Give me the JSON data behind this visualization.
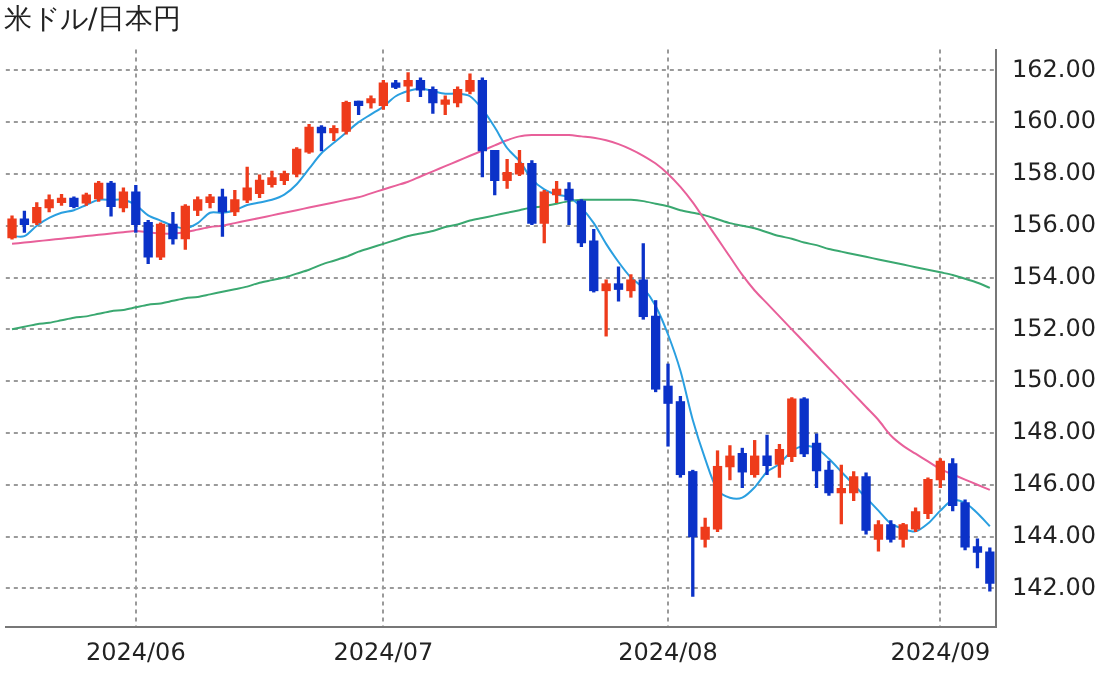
{
  "chart_data": {
    "type": "candlestick",
    "title": "米ドル/日本円",
    "categories": [
      null,
      null,
      null,
      null,
      null,
      null,
      null,
      null,
      null,
      null,
      "2024/06",
      null,
      null,
      null,
      null,
      null,
      null,
      null,
      null,
      null,
      null,
      null,
      null,
      null,
      null,
      null,
      null,
      null,
      null,
      null,
      "2024/07",
      null,
      null,
      null,
      null,
      null,
      null,
      null,
      null,
      null,
      null,
      null,
      null,
      null,
      null,
      null,
      null,
      null,
      null,
      null,
      null,
      null,
      null,
      "2024/08",
      null,
      null,
      null,
      null,
      null,
      null,
      null,
      null,
      null,
      null,
      null,
      null,
      null,
      null,
      null,
      null,
      null,
      null,
      null,
      null,
      null,
      "2024/09",
      null,
      null,
      null,
      null
    ],
    "ohlc": [
      [
        155.54,
        156.37,
        155.49,
        156.25
      ],
      [
        156.25,
        156.55,
        155.75,
        156.05
      ],
      [
        156.12,
        156.88,
        156.05,
        156.7
      ],
      [
        156.7,
        157.18,
        156.55,
        157.0
      ],
      [
        156.9,
        157.2,
        156.8,
        157.05
      ],
      [
        157.05,
        157.1,
        156.7,
        156.75
      ],
      [
        156.88,
        157.25,
        156.8,
        157.18
      ],
      [
        157.05,
        157.7,
        156.95,
        157.63
      ],
      [
        157.63,
        157.7,
        156.38,
        156.75
      ],
      [
        156.7,
        157.45,
        156.55,
        157.3
      ],
      [
        157.3,
        157.55,
        155.75,
        156.05
      ],
      [
        156.12,
        156.2,
        154.55,
        154.8
      ],
      [
        154.8,
        156.1,
        154.7,
        156.05
      ],
      [
        156.05,
        156.5,
        155.3,
        155.5
      ],
      [
        155.5,
        156.8,
        155.1,
        156.75
      ],
      [
        156.6,
        157.1,
        156.4,
        157.0
      ],
      [
        156.9,
        157.2,
        156.7,
        157.1
      ],
      [
        157.1,
        157.4,
        155.6,
        156.55
      ],
      [
        156.55,
        157.35,
        156.4,
        157.0
      ],
      [
        157.0,
        158.25,
        156.9,
        157.45
      ],
      [
        157.25,
        157.95,
        157.1,
        157.75
      ],
      [
        157.6,
        158.1,
        157.5,
        157.85
      ],
      [
        157.75,
        158.1,
        157.6,
        158.0
      ],
      [
        158.0,
        159.0,
        157.9,
        158.95
      ],
      [
        158.85,
        159.9,
        158.8,
        159.8
      ],
      [
        159.8,
        159.85,
        158.9,
        159.6
      ],
      [
        159.6,
        159.85,
        159.3,
        159.75
      ],
      [
        159.65,
        160.8,
        159.55,
        160.75
      ],
      [
        160.8,
        160.8,
        160.3,
        160.65
      ],
      [
        160.75,
        161.0,
        160.55,
        160.9
      ],
      [
        160.65,
        161.6,
        160.5,
        161.5
      ],
      [
        161.5,
        161.6,
        161.3,
        161.35
      ],
      [
        161.4,
        161.9,
        160.8,
        161.6
      ],
      [
        161.6,
        161.7,
        161.0,
        161.25
      ],
      [
        161.25,
        161.35,
        160.35,
        160.75
      ],
      [
        160.7,
        161.0,
        160.3,
        160.85
      ],
      [
        160.75,
        161.35,
        160.6,
        161.25
      ],
      [
        161.2,
        161.85,
        161.1,
        161.6
      ],
      [
        161.6,
        161.7,
        157.9,
        158.9
      ],
      [
        158.9,
        158.9,
        157.2,
        157.75
      ],
      [
        157.75,
        158.55,
        157.45,
        158.05
      ],
      [
        158.0,
        158.9,
        157.95,
        158.4
      ],
      [
        158.4,
        158.5,
        156.05,
        156.1
      ],
      [
        156.1,
        157.35,
        155.35,
        157.3
      ],
      [
        157.2,
        157.7,
        156.9,
        157.4
      ],
      [
        157.4,
        157.65,
        156.05,
        157.0
      ],
      [
        156.95,
        157.0,
        155.2,
        155.35
      ],
      [
        155.4,
        155.85,
        153.45,
        153.5
      ],
      [
        153.5,
        153.9,
        151.75,
        153.75
      ],
      [
        153.75,
        154.4,
        153.1,
        153.55
      ],
      [
        153.5,
        154.1,
        153.25,
        153.9
      ],
      [
        153.9,
        155.3,
        152.4,
        152.5
      ],
      [
        152.5,
        153.1,
        149.6,
        149.7
      ],
      [
        149.8,
        150.65,
        147.5,
        149.15
      ],
      [
        149.2,
        149.4,
        146.3,
        146.4
      ],
      [
        146.5,
        146.55,
        141.7,
        144.0
      ],
      [
        143.9,
        144.7,
        143.6,
        144.35
      ],
      [
        144.3,
        147.3,
        144.2,
        146.7
      ],
      [
        146.7,
        147.5,
        146.2,
        147.1
      ],
      [
        147.2,
        147.4,
        145.9,
        146.5
      ],
      [
        146.4,
        147.7,
        146.3,
        147.1
      ],
      [
        147.1,
        147.9,
        146.4,
        146.75
      ],
      [
        146.8,
        147.55,
        146.3,
        147.35
      ],
      [
        147.1,
        149.35,
        146.9,
        149.3
      ],
      [
        149.3,
        149.35,
        147.1,
        147.2
      ],
      [
        147.6,
        147.95,
        145.9,
        146.55
      ],
      [
        146.55,
        146.9,
        145.6,
        145.7
      ],
      [
        145.7,
        146.75,
        144.5,
        145.85
      ],
      [
        145.7,
        146.5,
        145.4,
        146.3
      ],
      [
        146.3,
        146.45,
        144.1,
        144.25
      ],
      [
        143.9,
        144.6,
        143.45,
        144.45
      ],
      [
        144.45,
        144.6,
        143.8,
        143.9
      ],
      [
        143.9,
        144.5,
        143.6,
        144.45
      ],
      [
        144.3,
        145.1,
        144.2,
        144.95
      ],
      [
        144.9,
        146.25,
        144.7,
        146.2
      ],
      [
        146.2,
        147.0,
        145.9,
        146.9
      ],
      [
        146.8,
        147.0,
        145.0,
        145.2
      ],
      [
        145.3,
        145.4,
        143.5,
        143.6
      ],
      [
        143.6,
        143.9,
        142.8,
        143.4
      ],
      [
        143.4,
        143.55,
        141.9,
        142.2
      ]
    ],
    "colors": [
      "#ee3b1b",
      "#0b32c8",
      "#ee3b1b",
      "#ee3b1b",
      "#ee3b1b",
      "#0b32c8",
      "#ee3b1b",
      "#ee3b1b",
      "#0b32c8",
      "#ee3b1b",
      "#0b32c8",
      "#0b32c8",
      "#ee3b1b",
      "#0b32c8",
      "#ee3b1b",
      "#ee3b1b",
      "#ee3b1b",
      "#0b32c8",
      "#ee3b1b",
      "#ee3b1b",
      "#ee3b1b",
      "#ee3b1b",
      "#ee3b1b",
      "#ee3b1b",
      "#ee3b1b",
      "#0b32c8",
      "#ee3b1b",
      "#ee3b1b",
      "#0b32c8",
      "#ee3b1b",
      "#ee3b1b",
      "#0b32c8",
      "#ee3b1b",
      "#0b32c8",
      "#0b32c8",
      "#ee3b1b",
      "#ee3b1b",
      "#ee3b1b",
      "#0b32c8",
      "#0b32c8",
      "#ee3b1b",
      "#ee3b1b",
      "#0b32c8",
      "#ee3b1b",
      "#ee3b1b",
      "#0b32c8",
      "#0b32c8",
      "#0b32c8",
      "#ee3b1b",
      "#0b32c8",
      "#ee3b1b",
      "#0b32c8",
      "#0b32c8",
      "#0b32c8",
      "#0b32c8",
      "#0b32c8",
      "#ee3b1b",
      "#ee3b1b",
      "#ee3b1b",
      "#0b32c8",
      "#ee3b1b",
      "#0b32c8",
      "#ee3b1b",
      "#ee3b1b",
      "#0b32c8",
      "#0b32c8",
      "#0b32c8",
      "#ee3b1b",
      "#ee3b1b",
      "#0b32c8",
      "#ee3b1b",
      "#0b32c8",
      "#ee3b1b",
      "#ee3b1b",
      "#ee3b1b",
      "#ee3b1b",
      "#0b32c8",
      "#0b32c8",
      "#0b32c8",
      "#0b32c8"
    ],
    "series": [
      {
        "type": "line",
        "color": "#2a9fe0",
        "values": [
          155.6,
          155.6,
          156.0,
          156.3,
          156.5,
          156.6,
          156.8,
          157.0,
          157.0,
          157.0,
          156.8,
          156.4,
          156.2,
          156.0,
          155.9,
          156.1,
          156.5,
          156.5,
          156.6,
          156.8,
          156.9,
          157.0,
          157.2,
          157.6,
          158.2,
          158.8,
          159.2,
          159.6,
          160.0,
          160.3,
          160.6,
          161.0,
          161.2,
          161.3,
          161.2,
          161.1,
          161.1,
          161.0,
          160.5,
          159.8,
          159.0,
          158.5,
          157.8,
          157.4,
          157.2,
          157.1,
          156.7,
          156.1,
          155.3,
          154.6,
          154.0,
          153.6,
          152.9,
          151.8,
          150.4,
          148.5,
          147.0,
          145.8,
          145.5,
          145.5,
          145.9,
          146.5,
          146.8,
          147.3,
          147.5,
          147.4,
          147.0,
          146.5,
          146.0,
          145.5,
          145.0,
          144.5,
          144.3,
          144.2,
          144.5,
          145.0,
          145.4,
          145.3,
          144.9,
          144.4
        ]
      },
      {
        "type": "line",
        "color": "#e8609a",
        "values": [
          155.3,
          155.35,
          155.4,
          155.45,
          155.5,
          155.55,
          155.6,
          155.65,
          155.7,
          155.75,
          155.8,
          155.75,
          155.7,
          155.7,
          155.75,
          155.85,
          155.95,
          156.0,
          156.1,
          156.2,
          156.3,
          156.4,
          156.5,
          156.6,
          156.7,
          156.8,
          156.9,
          157.0,
          157.1,
          157.25,
          157.4,
          157.55,
          157.7,
          157.9,
          158.1,
          158.3,
          158.5,
          158.7,
          158.9,
          159.1,
          159.3,
          159.45,
          159.5,
          159.5,
          159.5,
          159.5,
          159.45,
          159.4,
          159.3,
          159.15,
          158.95,
          158.7,
          158.4,
          158.0,
          157.5,
          156.9,
          156.2,
          155.5,
          154.8,
          154.1,
          153.5,
          153.0,
          152.5,
          152.0,
          151.5,
          151.0,
          150.5,
          150.0,
          149.5,
          149.0,
          148.5,
          147.9,
          147.5,
          147.2,
          146.9,
          146.6,
          146.4,
          146.2,
          146.0,
          145.8
        ]
      },
      {
        "type": "line",
        "color": "#3aa870",
        "values": [
          152.0,
          152.1,
          152.2,
          152.25,
          152.35,
          152.45,
          152.5,
          152.6,
          152.7,
          152.75,
          152.85,
          152.95,
          153.0,
          153.1,
          153.2,
          153.25,
          153.35,
          153.45,
          153.55,
          153.65,
          153.8,
          153.9,
          154.0,
          154.15,
          154.3,
          154.5,
          154.65,
          154.8,
          155.0,
          155.15,
          155.3,
          155.45,
          155.6,
          155.7,
          155.8,
          155.95,
          156.05,
          156.2,
          156.3,
          156.4,
          156.5,
          156.6,
          156.7,
          156.75,
          156.85,
          156.95,
          157.0,
          157.0,
          157.0,
          157.0,
          157.0,
          156.95,
          156.85,
          156.75,
          156.6,
          156.5,
          156.4,
          156.25,
          156.1,
          156.0,
          155.9,
          155.75,
          155.6,
          155.5,
          155.35,
          155.25,
          155.1,
          155.0,
          154.9,
          154.8,
          154.7,
          154.6,
          154.5,
          154.4,
          154.3,
          154.2,
          154.1,
          153.95,
          153.8,
          153.6
        ]
      }
    ],
    "ylim": [
      140.5,
      162.8
    ],
    "yticks": [
      {
        "value": 142,
        "label": "142.00"
      },
      {
        "value": 144,
        "label": "144.00"
      },
      {
        "value": 146,
        "label": "146.00"
      },
      {
        "value": 148,
        "label": "148.00"
      },
      {
        "value": 150,
        "label": "150.00"
      },
      {
        "value": 152,
        "label": "152.00"
      },
      {
        "value": 154,
        "label": "154.00"
      },
      {
        "value": 156,
        "label": "156.00"
      },
      {
        "value": 158,
        "label": "158.00"
      },
      {
        "value": 160,
        "label": "160.00"
      },
      {
        "value": 162,
        "label": "162.00"
      }
    ],
    "grid": true,
    "legend": false
  }
}
